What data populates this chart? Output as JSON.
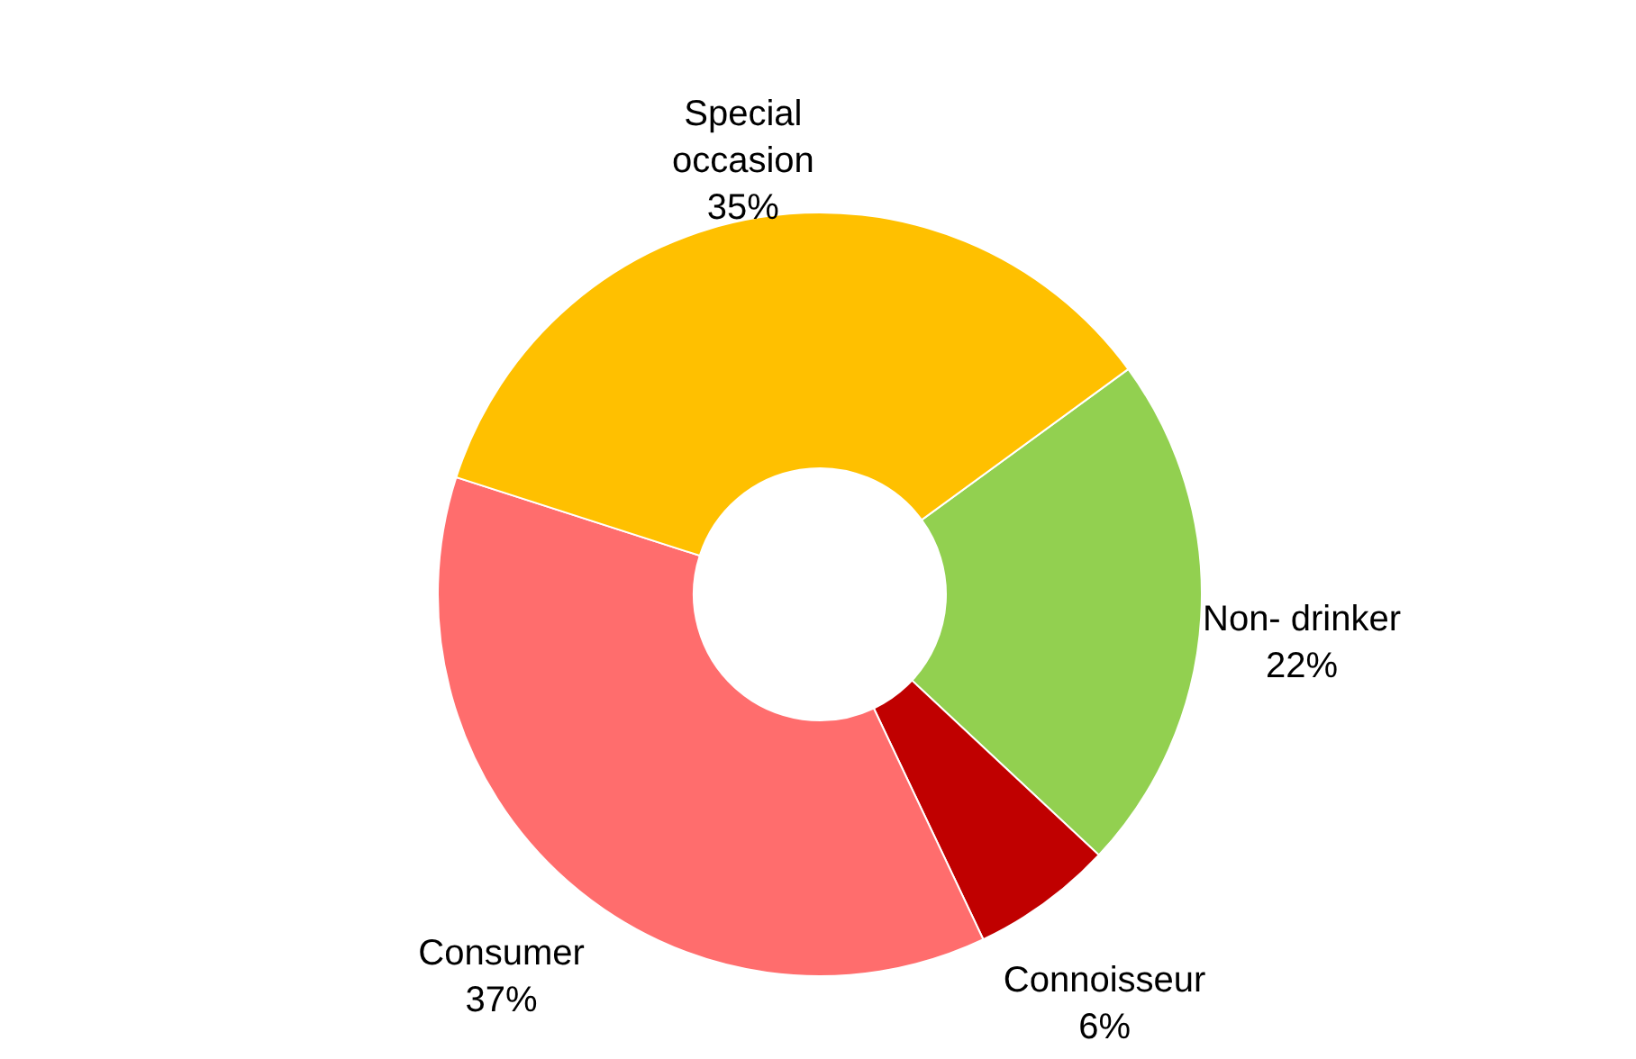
{
  "chart_data": {
    "type": "donut",
    "categories": [
      "Non- drinker",
      "Connoisseur",
      "Consumer",
      "Special occasion"
    ],
    "values": [
      22,
      6,
      37,
      35
    ],
    "value_labels": [
      "22%",
      "6%",
      "37%",
      "35%"
    ],
    "colors": [
      "#92d050",
      "#c00000",
      "#ff6d6d",
      "#ffc000"
    ]
  }
}
